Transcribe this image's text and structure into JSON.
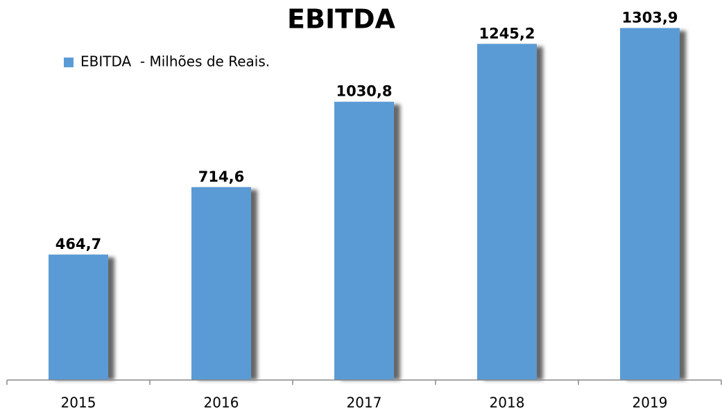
{
  "chart_data": {
    "type": "bar",
    "title": "EBITDA",
    "categories": [
      "2015",
      "2016",
      "2017",
      "2018",
      "2019"
    ],
    "series": [
      {
        "name": "EBITDA  - Milhões de Reais.",
        "color": "#5b9bd5",
        "values": [
          464.7,
          714.6,
          1030.8,
          1245.2,
          1303.9
        ],
        "value_labels": [
          "464,7",
          "714,6",
          "1030,8",
          "1245,2",
          "1303,9"
        ]
      }
    ],
    "ylim": [
      0,
      1400
    ],
    "legend": "top-left"
  }
}
